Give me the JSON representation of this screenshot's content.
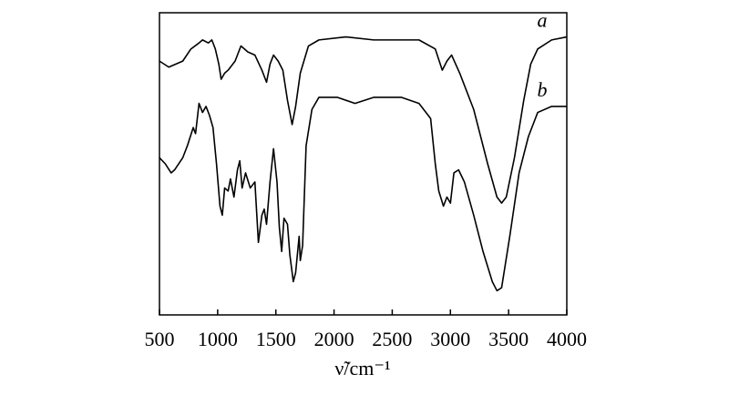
{
  "chart_data": {
    "type": "line",
    "x_label": "ν̃/cm⁻¹",
    "xlim": [
      500,
      4000
    ],
    "xticks": [
      500,
      1000,
      1500,
      2000,
      2500,
      3000,
      3500,
      4000
    ],
    "ylim": [
      0,
      100
    ],
    "series": [
      {
        "name": "a",
        "color": "#000000",
        "x": [
          500,
          580,
          700,
          770,
          840,
          870,
          920,
          950,
          980,
          1010,
          1030,
          1060,
          1090,
          1150,
          1200,
          1260,
          1320,
          1380,
          1420,
          1450,
          1480,
          1520,
          1560,
          1600,
          1640,
          1670,
          1710,
          1780,
          1870,
          2100,
          2340,
          2420,
          2730,
          2870,
          2930,
          2970,
          3010,
          3080,
          3200,
          3320,
          3400,
          3440,
          3480,
          3550,
          3630,
          3690,
          3750,
          3870,
          4000
        ],
        "values": [
          84,
          82,
          84,
          88,
          90,
          91,
          90,
          91,
          88,
          83,
          78,
          80,
          81,
          84,
          89,
          87,
          86,
          81,
          77,
          83,
          86,
          84,
          81,
          71,
          63,
          69,
          80,
          89,
          91,
          92,
          91,
          91,
          91,
          88,
          81,
          84,
          86,
          80,
          68,
          50,
          39,
          37,
          39,
          52,
          71,
          83,
          88,
          91,
          92
        ]
      },
      {
        "name": "b",
        "color": "#000000",
        "x": [
          500,
          550,
          600,
          630,
          700,
          740,
          790,
          810,
          840,
          870,
          900,
          930,
          960,
          990,
          1020,
          1040,
          1060,
          1090,
          1110,
          1140,
          1170,
          1190,
          1210,
          1240,
          1280,
          1320,
          1350,
          1380,
          1400,
          1420,
          1450,
          1480,
          1510,
          1530,
          1550,
          1570,
          1600,
          1620,
          1650,
          1670,
          1700,
          1710,
          1730,
          1760,
          1810,
          1870,
          2030,
          2180,
          2340,
          2580,
          2730,
          2830,
          2870,
          2900,
          2940,
          2970,
          3000,
          3030,
          3070,
          3120,
          3200,
          3280,
          3360,
          3400,
          3440,
          3510,
          3590,
          3670,
          3750,
          3870,
          4000
        ],
        "values": [
          52,
          50,
          47,
          48,
          52,
          56,
          62,
          60,
          70,
          67,
          69,
          66,
          62,
          50,
          36,
          33,
          42,
          41,
          45,
          39,
          48,
          51,
          42,
          47,
          42,
          44,
          24,
          33,
          35,
          30,
          44,
          55,
          44,
          29,
          21,
          32,
          30,
          20,
          11,
          14,
          26,
          18,
          23,
          56,
          68,
          72,
          72,
          70,
          72,
          72,
          70,
          65,
          50,
          41,
          36,
          39,
          37,
          47,
          48,
          44,
          33,
          21,
          11,
          8,
          9,
          26,
          47,
          59,
          67,
          69,
          69
        ]
      }
    ]
  }
}
